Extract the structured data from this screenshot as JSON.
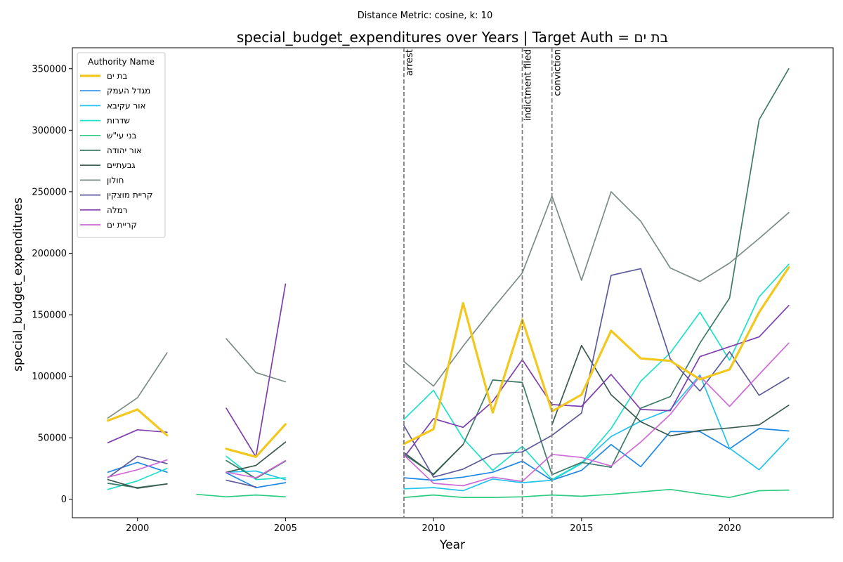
{
  "suptitle": "Distance Metric: cosine, k: 10",
  "chart_data": {
    "type": "line",
    "title": "special_budget_expenditures over Years | Target Auth = בת ים",
    "xlabel": "Year",
    "ylabel": "special_budget_expenditures",
    "xlim": [
      1997.8,
      2023.5
    ],
    "ylim": [
      -15000,
      367000
    ],
    "xticks": [
      2000,
      2005,
      2010,
      2015,
      2020
    ],
    "yticks": [
      0,
      50000,
      100000,
      150000,
      200000,
      250000,
      300000,
      350000
    ],
    "grid": false,
    "legend": {
      "title": "Authority Name",
      "placement": "top-left"
    },
    "events": [
      {
        "x": 2009,
        "label": "arrest"
      },
      {
        "x": 2013,
        "label": "indictment filed"
      },
      {
        "x": 2014,
        "label": "conviction"
      }
    ],
    "series": [
      {
        "name": "בת ים",
        "color": "#f2c81d",
        "target": true,
        "points": [
          [
            1999,
            64000
          ],
          [
            2000,
            73000
          ],
          [
            2001,
            52000
          ],
          [
            2003,
            41000
          ],
          [
            2004,
            34500
          ],
          [
            2005,
            61000
          ],
          [
            2009,
            45000
          ],
          [
            2010,
            57000
          ],
          [
            2011,
            159500
          ],
          [
            2012,
            70500
          ],
          [
            2013,
            146000
          ],
          [
            2014,
            71500
          ],
          [
            2015,
            85000
          ],
          [
            2016,
            137000
          ],
          [
            2017,
            114500
          ],
          [
            2018,
            112500
          ],
          [
            2019,
            97500
          ],
          [
            2020,
            105500
          ],
          [
            2021,
            152000
          ],
          [
            2022,
            188500
          ]
        ]
      },
      {
        "name": "מגדל העמק",
        "color": "#1f88e5",
        "points": [
          [
            1999,
            22000
          ],
          [
            2000,
            30000
          ],
          [
            2001,
            22000
          ],
          [
            2003,
            21500
          ],
          [
            2004,
            9500
          ],
          [
            2005,
            13500
          ],
          [
            2009,
            17500
          ],
          [
            2010,
            15500
          ],
          [
            2011,
            18000
          ],
          [
            2012,
            22000
          ],
          [
            2013,
            31000
          ],
          [
            2014,
            15500
          ],
          [
            2015,
            23500
          ],
          [
            2016,
            44500
          ],
          [
            2017,
            26500
          ],
          [
            2018,
            55000
          ],
          [
            2019,
            55000
          ],
          [
            2020,
            41000
          ],
          [
            2021,
            57500
          ],
          [
            2022,
            55500
          ]
        ]
      },
      {
        "name": "אור עקיבא",
        "color": "#20c4ee",
        "points": [
          [
            1999,
            null
          ],
          [
            2000,
            null
          ],
          [
            2001,
            null
          ],
          [
            2003,
            22000
          ],
          [
            2004,
            23000
          ],
          [
            2005,
            16000
          ],
          [
            2009,
            8500
          ],
          [
            2010,
            9500
          ],
          [
            2011,
            7000
          ],
          [
            2012,
            16500
          ],
          [
            2013,
            13500
          ],
          [
            2014,
            15500
          ],
          [
            2015,
            29000
          ],
          [
            2016,
            51000
          ],
          [
            2017,
            63500
          ],
          [
            2018,
            73000
          ],
          [
            2019,
            101000
          ],
          [
            2020,
            41500
          ],
          [
            2021,
            24000
          ],
          [
            2022,
            49500
          ]
        ]
      },
      {
        "name": "שדרות",
        "color": "#1ee2c8",
        "points": [
          [
            1999,
            8000
          ],
          [
            2000,
            15000
          ],
          [
            2001,
            25000
          ],
          [
            2003,
            35000
          ],
          [
            2004,
            16000
          ],
          [
            2005,
            17500
          ],
          [
            2009,
            65000
          ],
          [
            2010,
            88500
          ],
          [
            2011,
            49500
          ],
          [
            2012,
            23500
          ],
          [
            2013,
            43000
          ],
          [
            2014,
            16000
          ],
          [
            2015,
            29500
          ],
          [
            2016,
            57500
          ],
          [
            2017,
            96000
          ],
          [
            2018,
            119000
          ],
          [
            2019,
            152000
          ],
          [
            2020,
            113000
          ],
          [
            2021,
            164500
          ],
          [
            2022,
            191000
          ]
        ]
      },
      {
        "name": "בני עי\"ש",
        "color": "#2ecc82",
        "points": [
          [
            2002,
            4000
          ],
          [
            2003,
            2000
          ],
          [
            2004,
            3500
          ],
          [
            2005,
            2000
          ],
          [
            2009,
            1500
          ],
          [
            2010,
            3500
          ],
          [
            2011,
            1500
          ],
          [
            2012,
            1500
          ],
          [
            2013,
            2000
          ],
          [
            2014,
            3500
          ],
          [
            2015,
            2500
          ],
          [
            2016,
            4000
          ],
          [
            2017,
            6000
          ],
          [
            2018,
            8000
          ],
          [
            2019,
            4500
          ],
          [
            2020,
            1500
          ],
          [
            2021,
            7000
          ],
          [
            2022,
            7500
          ]
        ]
      },
      {
        "name": "אור יהודה",
        "color": "#3e7b69",
        "points": [
          [
            1999,
            13000
          ],
          [
            2000,
            9500
          ],
          [
            2001,
            12500
          ],
          [
            2003,
            31500
          ],
          [
            2004,
            17000
          ],
          [
            2005,
            31000
          ],
          [
            2009,
            36500
          ],
          [
            2010,
            20500
          ],
          [
            2011,
            44500
          ],
          [
            2012,
            97000
          ],
          [
            2013,
            95000
          ],
          [
            2014,
            20000
          ],
          [
            2015,
            30000
          ],
          [
            2016,
            26000
          ],
          [
            2017,
            74000
          ],
          [
            2018,
            83500
          ],
          [
            2019,
            127000
          ],
          [
            2020,
            163500
          ],
          [
            2021,
            308500
          ],
          [
            2022,
            350000
          ]
        ]
      },
      {
        "name": "גבעתיים",
        "color": "#3a5a4f",
        "points": [
          [
            1999,
            16000
          ],
          [
            2000,
            9000
          ],
          [
            2001,
            12500
          ],
          [
            2003,
            22000
          ],
          [
            2004,
            27500
          ],
          [
            2005,
            46500
          ],
          [
            2009,
            38000
          ],
          [
            2010,
            20000
          ],
          [
            2011,
            44500
          ],
          [
            2012,
            null
          ],
          [
            2013,
            null
          ],
          [
            2014,
            60500
          ],
          [
            2015,
            125000
          ],
          [
            2016,
            85000
          ],
          [
            2017,
            63000
          ],
          [
            2018,
            51500
          ],
          [
            2019,
            56000
          ],
          [
            2020,
            58000
          ],
          [
            2021,
            60500
          ],
          [
            2022,
            76500
          ]
        ]
      },
      {
        "name": "חולון",
        "color": "#7b8c86",
        "points": [
          [
            1999,
            66000
          ],
          [
            2000,
            82500
          ],
          [
            2001,
            119000
          ],
          [
            2003,
            130500
          ],
          [
            2004,
            103000
          ],
          [
            2005,
            95500
          ],
          [
            2009,
            112000
          ],
          [
            2010,
            92000
          ],
          [
            2011,
            124500
          ],
          [
            2012,
            155000
          ],
          [
            2013,
            184000
          ],
          [
            2014,
            246500
          ],
          [
            2015,
            178000
          ],
          [
            2016,
            250000
          ],
          [
            2017,
            226000
          ],
          [
            2018,
            188000
          ],
          [
            2019,
            177000
          ],
          [
            2020,
            192000
          ],
          [
            2021,
            212000
          ],
          [
            2022,
            233000
          ]
        ]
      },
      {
        "name": "קריית מוצקין",
        "color": "#5d5a9c",
        "points": [
          [
            1999,
            17500
          ],
          [
            2000,
            35000
          ],
          [
            2001,
            29000
          ],
          [
            2003,
            15500
          ],
          [
            2004,
            10000
          ],
          [
            2005,
            null
          ],
          [
            2009,
            60000
          ],
          [
            2010,
            18000
          ],
          [
            2011,
            24500
          ],
          [
            2012,
            36500
          ],
          [
            2013,
            38500
          ],
          [
            2014,
            52000
          ],
          [
            2015,
            70000
          ],
          [
            2016,
            182000
          ],
          [
            2017,
            187500
          ],
          [
            2018,
            114000
          ],
          [
            2019,
            88000
          ],
          [
            2020,
            120000
          ],
          [
            2021,
            84500
          ],
          [
            2022,
            99000
          ]
        ]
      },
      {
        "name": "רמלה",
        "color": "#7f3fae",
        "points": [
          [
            1999,
            46000
          ],
          [
            2000,
            56500
          ],
          [
            2001,
            54500
          ],
          [
            2003,
            74000
          ],
          [
            2004,
            34500
          ],
          [
            2005,
            175000
          ],
          [
            2009,
            34000
          ],
          [
            2010,
            65500
          ],
          [
            2011,
            58500
          ],
          [
            2012,
            79500
          ],
          [
            2013,
            113500
          ],
          [
            2014,
            77000
          ],
          [
            2015,
            75500
          ],
          [
            2016,
            101500
          ],
          [
            2017,
            73000
          ],
          [
            2018,
            72000
          ],
          [
            2019,
            116000
          ],
          [
            2020,
            124000
          ],
          [
            2021,
            132000
          ],
          [
            2022,
            157500
          ]
        ]
      },
      {
        "name": "קריית ים",
        "color": "#cf6ad6",
        "points": [
          [
            1999,
            18000
          ],
          [
            2000,
            24000
          ],
          [
            2001,
            32000
          ],
          [
            2003,
            22000
          ],
          [
            2004,
            17500
          ],
          [
            2005,
            31500
          ],
          [
            2009,
            36000
          ],
          [
            2010,
            13000
          ],
          [
            2011,
            11000
          ],
          [
            2012,
            18000
          ],
          [
            2013,
            14500
          ],
          [
            2014,
            36500
          ],
          [
            2015,
            34000
          ],
          [
            2016,
            27000
          ],
          [
            2017,
            46500
          ],
          [
            2018,
            69000
          ],
          [
            2019,
            100000
          ],
          [
            2020,
            75500
          ],
          [
            2021,
            101500
          ],
          [
            2022,
            127000
          ]
        ]
      }
    ]
  }
}
